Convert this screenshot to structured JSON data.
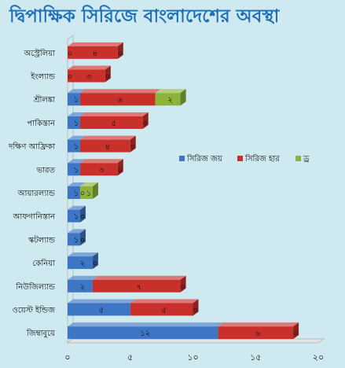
{
  "chart_data": {
    "type": "bar",
    "orientation": "horizontal",
    "stacked": true,
    "title": "দ্বিপাক্ষিক সিরিজে বাংলাদেশের অবস্থা",
    "categories": [
      "অস্ট্রেলিয়া",
      "ইংল্যান্ড",
      "শ্রীলঙ্কা",
      "পাকিস্তান",
      "দক্ষিণ আফ্রিকা",
      "ভারত",
      "আয়ারল্যান্ড",
      "আফগানিস্তান",
      "স্কটল্যান্ড",
      "কেনিয়া",
      "নিউজিল্যান্ড",
      "ওয়েস্ট ইন্ডিজ",
      "জিম্বাবুয়ে"
    ],
    "series": [
      {
        "name": "সিরিজ জয়",
        "color": "#3c76c4",
        "values": [
          0,
          0,
          1,
          1,
          1,
          1,
          1,
          1,
          1,
          2,
          2,
          5,
          12
        ],
        "labels": [
          "০",
          "০",
          "১",
          "১",
          "১",
          "১",
          "১",
          "১",
          "১",
          "২",
          "২",
          "৫",
          "১২"
        ]
      },
      {
        "name": "সিরিজ হার",
        "color": "#c9302c",
        "values": [
          4,
          3,
          6,
          5,
          4,
          3,
          0,
          0,
          0,
          0,
          7,
          5,
          6
        ],
        "labels": [
          "৪",
          "৩",
          "৬",
          "৫",
          "৪",
          "৩",
          "০",
          "০",
          "০",
          "০",
          "৭",
          "৫",
          "৬"
        ]
      },
      {
        "name": "ড্র",
        "color": "#8cb43c",
        "values": [
          0,
          0,
          2,
          0,
          0,
          0,
          1,
          0,
          0,
          0,
          0,
          0,
          0
        ],
        "labels": [
          "০",
          "০",
          "২",
          "০",
          "০",
          "০",
          "১",
          "০",
          "০",
          "০",
          "০",
          "০",
          "০"
        ]
      }
    ],
    "xlim": [
      0,
      20
    ],
    "xticks": [
      0,
      5,
      10,
      15,
      20
    ],
    "xtick_labels": [
      "০",
      "৫",
      "১০",
      "১৫",
      "২০"
    ],
    "legend_position": "right"
  }
}
